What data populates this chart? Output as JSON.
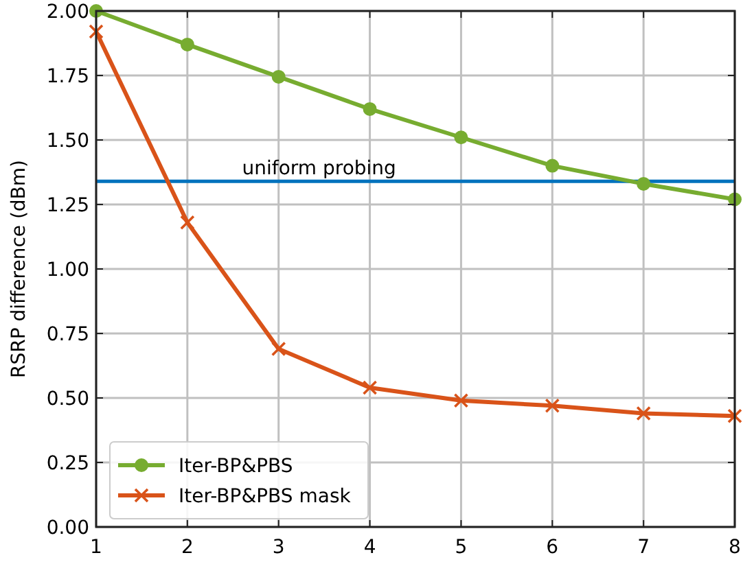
{
  "chart_data": {
    "type": "line",
    "ylabel": "RSRP difference (dBm)",
    "x": [
      1,
      2,
      3,
      4,
      5,
      6,
      7,
      8
    ],
    "series": [
      {
        "name": "Iter-BP&PBS",
        "color": "#77ac30",
        "marker": "circle",
        "values": [
          2.0,
          1.87,
          1.745,
          1.62,
          1.51,
          1.4,
          1.33,
          1.27
        ]
      },
      {
        "name": "Iter-BP&PBS mask",
        "color": "#d95319",
        "marker": "cross",
        "values": [
          1.92,
          1.18,
          0.69,
          0.54,
          0.49,
          0.47,
          0.44,
          0.43
        ]
      }
    ],
    "xlim": [
      1,
      8
    ],
    "xticks": [
      1,
      2,
      3,
      4,
      5,
      6,
      7,
      8
    ],
    "ylim": [
      0,
      2
    ],
    "yticks": [
      {
        "value": 0,
        "label": "0.00"
      },
      {
        "value": 0.25,
        "label": "0.25"
      },
      {
        "value": 0.5,
        "label": "0.50"
      },
      {
        "value": 0.75,
        "label": "0.75"
      },
      {
        "value": 1,
        "label": "1.00"
      },
      {
        "value": 1.25,
        "label": "1.25"
      },
      {
        "value": 1.5,
        "label": "1.50"
      },
      {
        "value": 1.75,
        "label": "1.75"
      },
      {
        "value": 2,
        "label": "2.00"
      }
    ],
    "ref_lines": [
      {
        "axis": "y",
        "value": 1.34,
        "label": "uniform probing",
        "color": "#0072bd"
      }
    ],
    "grid": true,
    "legend": "bottom left",
    "line_style": "solid"
  }
}
